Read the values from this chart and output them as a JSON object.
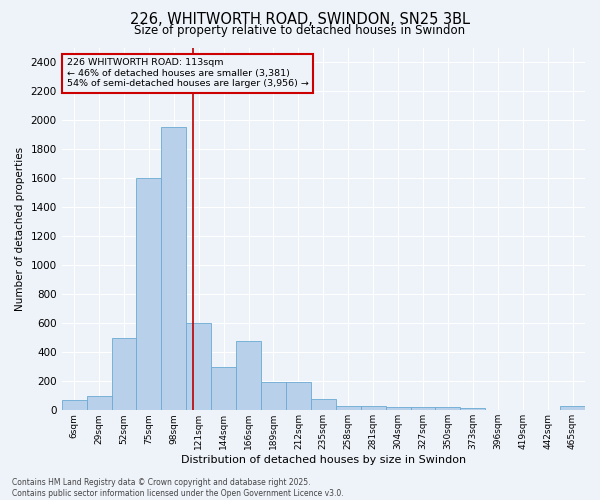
{
  "title_line1": "226, WHITWORTH ROAD, SWINDON, SN25 3BL",
  "title_line2": "Size of property relative to detached houses in Swindon",
  "xlabel": "Distribution of detached houses by size in Swindon",
  "ylabel": "Number of detached properties",
  "annotation_line1": "226 WHITWORTH ROAD: 113sqm",
  "annotation_line2": "← 46% of detached houses are smaller (3,381)",
  "annotation_line3": "54% of semi-detached houses are larger (3,956) →",
  "categories": [
    "6sqm",
    "29sqm",
    "52sqm",
    "75sqm",
    "98sqm",
    "121sqm",
    "144sqm",
    "166sqm",
    "189sqm",
    "212sqm",
    "235sqm",
    "258sqm",
    "281sqm",
    "304sqm",
    "327sqm",
    "350sqm",
    "373sqm",
    "396sqm",
    "419sqm",
    "442sqm",
    "465sqm"
  ],
  "values": [
    70,
    100,
    500,
    1600,
    1950,
    600,
    300,
    480,
    195,
    195,
    75,
    30,
    30,
    25,
    25,
    20,
    15,
    0,
    0,
    0,
    30
  ],
  "bar_color": "#b8d0ea",
  "bar_edge_color": "#6aaad4",
  "vline_color": "#bb0000",
  "vline_x": 4.78,
  "annotation_box_color": "#cc0000",
  "background_color": "#eef2f9",
  "grid_color": "#ffffff",
  "ylim": [
    0,
    2500
  ],
  "yticks": [
    0,
    200,
    400,
    600,
    800,
    1000,
    1200,
    1400,
    1600,
    1800,
    2000,
    2200,
    2400
  ],
  "footer_line1": "Contains HM Land Registry data © Crown copyright and database right 2025.",
  "footer_line2": "Contains public sector information licensed under the Open Government Licence v3.0."
}
